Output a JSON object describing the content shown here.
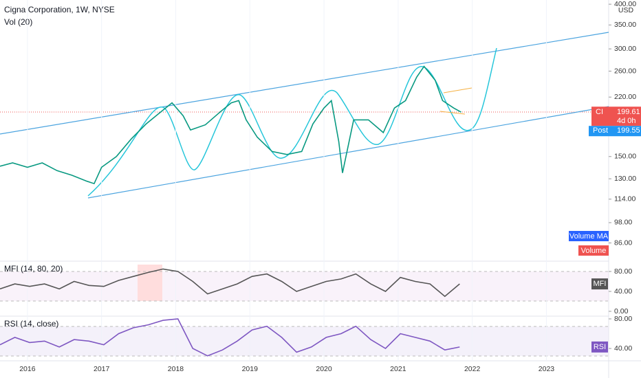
{
  "chart_data": [
    {
      "type": "line",
      "title": "Cigna Corporation, 1W, NYSE",
      "currency": "USD",
      "log_scale": true,
      "color": "#089981",
      "xlim": [
        2015.63,
        2023.84
      ],
      "xticks": [
        2016,
        2017,
        2018,
        2019,
        2020,
        2021,
        2022,
        2023
      ],
      "ylim": [
        77.5,
        411
      ],
      "yticks": [
        {
          "value": 400,
          "label": "400.00"
        },
        {
          "value": 350,
          "label": "350.00"
        },
        {
          "value": 300,
          "label": "300.00"
        },
        {
          "value": 260,
          "label": "260.00"
        },
        {
          "value": 220,
          "label": "220.00"
        },
        {
          "value": 150,
          "label": "150.00"
        },
        {
          "value": 130,
          "label": "130.00"
        },
        {
          "value": 114,
          "label": "114.00"
        },
        {
          "value": 98,
          "label": "98.00"
        },
        {
          "value": 86,
          "label": "86.00"
        }
      ],
      "series": [
        {
          "name": "CI",
          "color": "#089981",
          "x": [
            2015.63,
            2015.8,
            2016.0,
            2016.2,
            2016.4,
            2016.6,
            2016.8,
            2016.9,
            2017.0,
            2017.2,
            2017.4,
            2017.6,
            2017.8,
            2017.95,
            2018.1,
            2018.2,
            2018.4,
            2018.6,
            2018.75,
            2018.85,
            2018.95,
            2019.1,
            2019.3,
            2019.5,
            2019.7,
            2019.85,
            2020.0,
            2020.1,
            2020.2,
            2020.25,
            2020.4,
            2020.6,
            2020.8,
            2020.95,
            2021.1,
            2021.25,
            2021.35,
            2021.5,
            2021.6,
            2021.75,
            2021.85
          ],
          "values": [
            141,
            144,
            140,
            144,
            137,
            133,
            128,
            126,
            140,
            150,
            168,
            185,
            200,
            212,
            195,
            178,
            184,
            200,
            212,
            215,
            190,
            170,
            155,
            152,
            155,
            185,
            205,
            215,
            165,
            135,
            190,
            190,
            175,
            205,
            215,
            250,
            268,
            245,
            215,
            205,
            199.61
          ]
        }
      ],
      "last_price": {
        "symbol": "CI",
        "value": 199.61,
        "countdown": "4d 0h"
      },
      "post_market": {
        "label": "Post",
        "value": 199.55
      },
      "volume": {
        "title": "Vol (20)",
        "legend": [
          "Volume MA",
          "Volume"
        ]
      }
    },
    {
      "type": "line",
      "title": "MFI (14, 80, 20)",
      "label": "MFI",
      "ylim": [
        -9.7,
        100.7
      ],
      "yticks": [
        {
          "value": 80,
          "label": "80.00"
        },
        {
          "value": 40,
          "label": "40.00"
        },
        {
          "value": 0,
          "label": "0.00"
        }
      ],
      "series": [
        {
          "name": "MFI",
          "color": "#555555",
          "x": [
            2015.63,
            2015.83,
            2016.03,
            2016.23,
            2016.43,
            2016.63,
            2016.83,
            2017.03,
            2017.23,
            2017.43,
            2017.63,
            2017.83,
            2018.03,
            2018.23,
            2018.43,
            2018.63,
            2018.83,
            2019.03,
            2019.23,
            2019.43,
            2019.63,
            2019.83,
            2020.03,
            2020.23,
            2020.43,
            2020.63,
            2020.83,
            2021.03,
            2021.23,
            2021.43,
            2021.63,
            2021.83
          ],
          "values": [
            45,
            55,
            50,
            55,
            45,
            60,
            52,
            50,
            62,
            70,
            78,
            85,
            80,
            60,
            35,
            45,
            55,
            70,
            75,
            60,
            40,
            50,
            60,
            65,
            75,
            55,
            40,
            68,
            60,
            55,
            30,
            55
          ]
        }
      ]
    },
    {
      "type": "line",
      "title": "RSI (14, close)",
      "label": "RSI",
      "ylim": [
        23.3,
        83.7
      ],
      "yticks": [
        {
          "value": 80,
          "label": "80.00"
        },
        {
          "value": 40,
          "label": "40.00"
        }
      ],
      "series": [
        {
          "name": "RSI",
          "color": "#7e57c2",
          "x": [
            2015.63,
            2015.83,
            2016.03,
            2016.23,
            2016.43,
            2016.63,
            2016.83,
            2017.03,
            2017.23,
            2017.43,
            2017.63,
            2017.83,
            2018.03,
            2018.23,
            2018.43,
            2018.63,
            2018.83,
            2019.03,
            2019.23,
            2019.43,
            2019.63,
            2019.83,
            2020.03,
            2020.23,
            2020.43,
            2020.63,
            2020.83,
            2021.03,
            2021.23,
            2021.43,
            2021.63,
            2021.83
          ],
          "values": [
            45,
            55,
            48,
            50,
            42,
            52,
            50,
            45,
            60,
            68,
            72,
            78,
            80,
            40,
            30,
            38,
            50,
            65,
            70,
            55,
            35,
            42,
            55,
            60,
            70,
            52,
            40,
            60,
            55,
            50,
            38,
            42
          ]
        }
      ]
    }
  ]
}
